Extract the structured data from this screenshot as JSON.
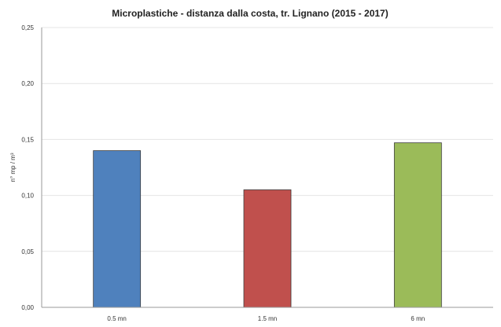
{
  "chart_data": {
    "type": "bar",
    "title": "Microplastiche - distanza dalla costa, tr. Lignano (2015 - 2017)",
    "xlabel": "",
    "ylabel": "n° mp / m³",
    "categories": [
      "0.5 mn",
      "1.5 mn",
      "6 mn"
    ],
    "values": [
      0.14,
      0.105,
      0.147
    ],
    "colors": [
      "#4f81bd",
      "#c0504d",
      "#9bbb59"
    ],
    "ylim": [
      0,
      0.25
    ],
    "yticks": [
      "0,00",
      "0,05",
      "0,10",
      "0,15",
      "0,20",
      "0,25"
    ],
    "grid": true,
    "legend": "none"
  }
}
